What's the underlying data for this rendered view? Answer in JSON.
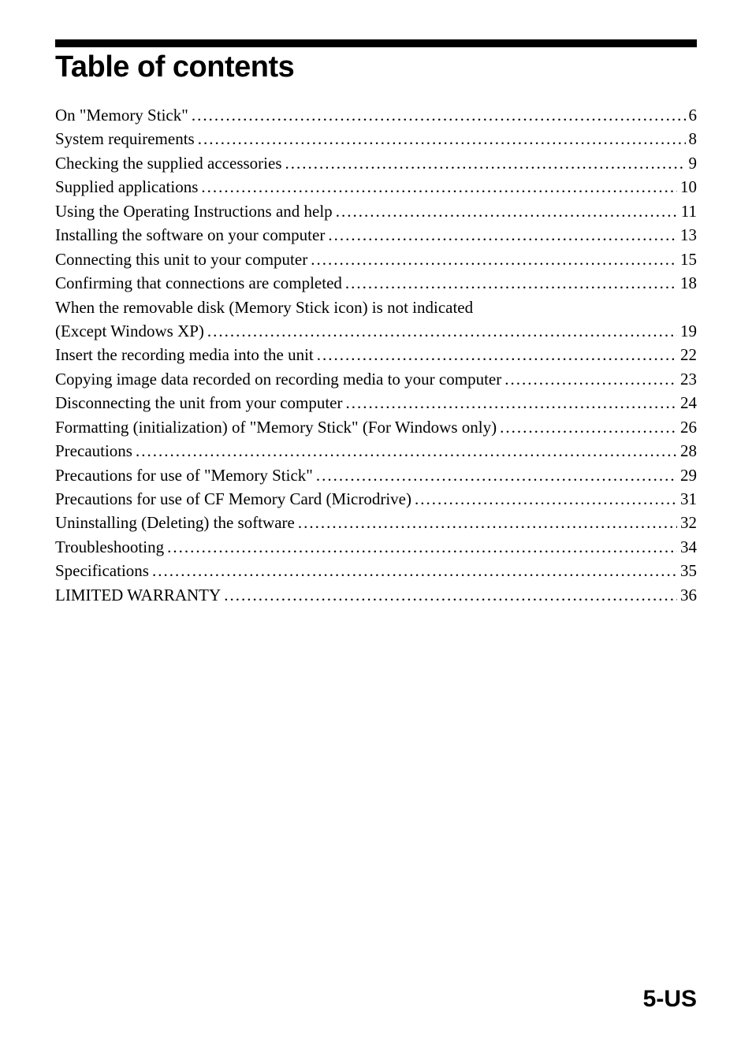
{
  "title": "Table of contents",
  "entries": [
    {
      "label": "On \"Memory Stick\"",
      "page": "6"
    },
    {
      "label": "System requirements",
      "page": "8"
    },
    {
      "label": "Checking the supplied accessories",
      "page": "9"
    },
    {
      "label": "Supplied applications",
      "page": "10"
    },
    {
      "label": "Using the Operating Instructions and help",
      "page": "11"
    },
    {
      "label": "Installing the software on your computer",
      "page": "13"
    },
    {
      "label": "Connecting this unit to your computer",
      "page": "15"
    },
    {
      "label": "Confirming that connections are completed",
      "page": "18"
    },
    {
      "label": "When the removable disk (Memory Stick icon) is not indicated",
      "page": "",
      "noPage": true
    },
    {
      "label": "(Except Windows XP)",
      "page": "19"
    },
    {
      "label": "Insert the recording media into the unit",
      "page": "22"
    },
    {
      "label": "Copying image data recorded on recording media to your computer",
      "page": "23"
    },
    {
      "label": "Disconnecting the unit from your computer",
      "page": "24"
    },
    {
      "label": "Formatting (initialization) of \"Memory Stick\"  (For Windows only)",
      "page": "26"
    },
    {
      "label": "Precautions",
      "page": "28"
    },
    {
      "label": "Precautions for use of \"Memory Stick\"",
      "page": "29"
    },
    {
      "label": "Precautions for use of CF Memory Card (Microdrive)",
      "page": "31"
    },
    {
      "label": "Uninstalling (Deleting) the software",
      "page": "32"
    },
    {
      "label": "Troubleshooting",
      "page": "34"
    },
    {
      "label": "Specifications",
      "page": "35"
    },
    {
      "label": "LIMITED WARRANTY",
      "page": "36"
    }
  ],
  "pageNumber": "5-US",
  "style": {
    "background_color": "#ffffff",
    "text_color": "#000000",
    "bar_color": "#000000",
    "title_font": "Arial",
    "title_fontsize": 38,
    "title_fontweight": "bold",
    "body_font": "Georgia",
    "body_fontsize": 21,
    "page_number_font": "Arial",
    "page_number_fontsize": 30,
    "page_number_fontweight": "bold"
  }
}
